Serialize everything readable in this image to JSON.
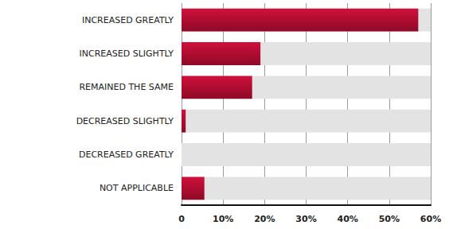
{
  "chart_data": {
    "type": "bar",
    "orientation": "horizontal",
    "categories": [
      "INCREASED GREATLY",
      "INCREASED SLIGHTLY",
      "REMAINED THE SAME",
      "DECREASED SLIGHTLY",
      "DECREASED GREATLY",
      "NOT APPLICABLE"
    ],
    "values": [
      57,
      19,
      17,
      1,
      0,
      5.5
    ],
    "color": "#d0103a",
    "xlim": [
      0,
      60
    ],
    "xticks": [
      0,
      {
        "value": 10,
        "label": "10%"
      },
      {
        "value": 20,
        "label": "20%"
      },
      {
        "value": 30,
        "label": "30%"
      },
      {
        "value": 40,
        "label": "40%"
      },
      {
        "value": 50,
        "label": "50%"
      },
      {
        "value": 60,
        "label": "60%"
      }
    ],
    "grid": true
  }
}
